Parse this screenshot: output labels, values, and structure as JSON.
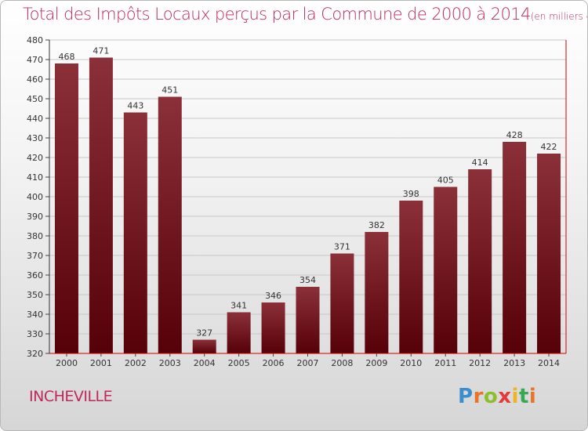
{
  "title": "Total des Impôts Locaux perçus par la Commune de 2000 à 2014",
  "unit_label": "(en milliers d'€)",
  "commune": "INCHEVILLE",
  "logo": {
    "text": "Proxiti",
    "letters": [
      "P",
      "r",
      "o",
      "x",
      "i",
      "t",
      "i"
    ]
  },
  "colors": {
    "bar_top": "#8b3038",
    "bar_bottom": "#560008",
    "title": "#c0285a",
    "axis": "#d00000"
  },
  "chart_data": {
    "type": "bar",
    "title": "Total des Impôts Locaux perçus par la Commune de 2000 à 2014",
    "xlabel": "",
    "ylabel": "(en milliers d'€)",
    "categories": [
      "2000",
      "2001",
      "2002",
      "2003",
      "2004",
      "2005",
      "2006",
      "2007",
      "2008",
      "2009",
      "2010",
      "2011",
      "2012",
      "2013",
      "2014"
    ],
    "values": [
      468,
      471,
      443,
      451,
      327,
      341,
      346,
      354,
      371,
      382,
      398,
      405,
      414,
      428,
      422
    ],
    "ylim": [
      320,
      480
    ],
    "ytick_step": 10,
    "grid": true
  }
}
